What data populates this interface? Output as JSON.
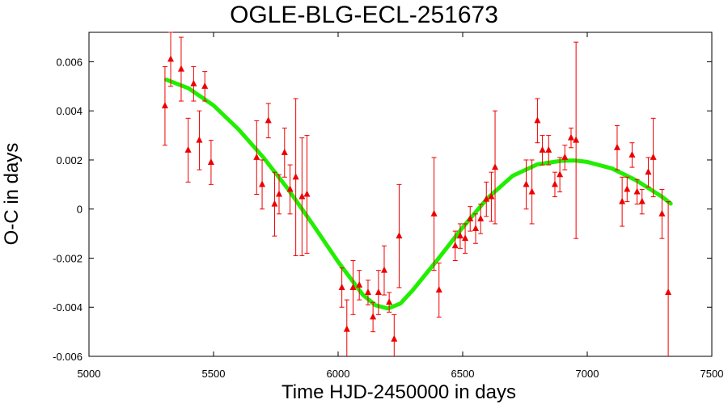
{
  "chart_data": {
    "type": "scatter",
    "title": "OGLE-BLG-ECL-251673",
    "xlabel": "Time HJD-2450000 in days",
    "ylabel": "O-C in days",
    "xlim": [
      5000,
      7500
    ],
    "ylim": [
      -0.006,
      0.0072
    ],
    "xticks": [
      5000,
      5500,
      6000,
      6500,
      7000,
      7500
    ],
    "yticks": [
      -0.006,
      -0.004,
      -0.002,
      0,
      0.002,
      0.004,
      0.006
    ],
    "ytick_labels": [
      "-0.006",
      "-0.004",
      "-0.002",
      "0",
      "0.002",
      "0.004",
      "0.006"
    ],
    "grid": false,
    "colors": {
      "points": "#ee0000",
      "fit": "#22ee00"
    },
    "series": [
      {
        "marker": "triangle",
        "points": [
          {
            "x": 5305,
            "y": 0.0042,
            "err": 0.0016
          },
          {
            "x": 5328,
            "y": 0.0061,
            "err": 0.0011
          },
          {
            "x": 5370,
            "y": 0.0057,
            "err": 0.0013
          },
          {
            "x": 5398,
            "y": 0.0024,
            "err": 0.0013
          },
          {
            "x": 5420,
            "y": 0.0051,
            "err": 0.0007
          },
          {
            "x": 5443,
            "y": 0.0028,
            "err": 0.0012
          },
          {
            "x": 5465,
            "y": 0.005,
            "err": 0.0006
          },
          {
            "x": 5490,
            "y": 0.0019,
            "err": 0.0009
          },
          {
            "x": 5673,
            "y": 0.0021,
            "err": 0.0015
          },
          {
            "x": 5695,
            "y": 0.001,
            "err": 0.001
          },
          {
            "x": 5720,
            "y": 0.0036,
            "err": 0.0007
          },
          {
            "x": 5745,
            "y": 0.0002,
            "err": 0.0013
          },
          {
            "x": 5763,
            "y": 0.0006,
            "err": 0.0008
          },
          {
            "x": 5785,
            "y": 0.0023,
            "err": 0.001
          },
          {
            "x": 5807,
            "y": 0.0008,
            "err": 0.001
          },
          {
            "x": 5830,
            "y": 0.0013,
            "err": 0.0032
          },
          {
            "x": 5855,
            "y": 0.0005,
            "err": 0.0024
          },
          {
            "x": 5875,
            "y": 0.0006,
            "err": 0.0024
          },
          {
            "x": 6015,
            "y": -0.0032,
            "err": 0.0008
          },
          {
            "x": 6035,
            "y": -0.0049,
            "err": 0.0012
          },
          {
            "x": 6060,
            "y": -0.0032,
            "err": 0.0011
          },
          {
            "x": 6085,
            "y": -0.0031,
            "err": 0.0006
          },
          {
            "x": 6120,
            "y": -0.0034,
            "err": 0.0005
          },
          {
            "x": 6140,
            "y": -0.0044,
            "err": 0.0006
          },
          {
            "x": 6162,
            "y": -0.0034,
            "err": 0.0009
          },
          {
            "x": 6185,
            "y": -0.0025,
            "err": 0.001
          },
          {
            "x": 6205,
            "y": -0.0038,
            "err": 0.0004
          },
          {
            "x": 6225,
            "y": -0.0053,
            "err": 0.001
          },
          {
            "x": 6245,
            "y": -0.0011,
            "err": 0.0021
          },
          {
            "x": 6385,
            "y": -0.0002,
            "err": 0.0023
          },
          {
            "x": 6405,
            "y": -0.0033,
            "err": 0.0011
          },
          {
            "x": 6470,
            "y": -0.0015,
            "err": 0.0006
          },
          {
            "x": 6490,
            "y": -0.0011,
            "err": 0.0005
          },
          {
            "x": 6510,
            "y": -0.0012,
            "err": 0.0006
          },
          {
            "x": 6530,
            "y": -0.0004,
            "err": 0.0005
          },
          {
            "x": 6552,
            "y": -0.0008,
            "err": 0.0006
          },
          {
            "x": 6572,
            "y": -0.0004,
            "err": 0.0006
          },
          {
            "x": 6595,
            "y": 0.0004,
            "err": 0.0007
          },
          {
            "x": 6615,
            "y": 0.0005,
            "err": 0.001
          },
          {
            "x": 6630,
            "y": 0.0017,
            "err": 0.0023
          },
          {
            "x": 6755,
            "y": 0.001,
            "err": 0.001
          },
          {
            "x": 6778,
            "y": 0.0007,
            "err": 0.0013
          },
          {
            "x": 6800,
            "y": 0.0036,
            "err": 0.0009
          },
          {
            "x": 6820,
            "y": 0.0024,
            "err": 0.0006
          },
          {
            "x": 6845,
            "y": 0.0024,
            "err": 0.0006
          },
          {
            "x": 6870,
            "y": 0.001,
            "err": 0.0005
          },
          {
            "x": 6890,
            "y": 0.0014,
            "err": 0.0007
          },
          {
            "x": 6910,
            "y": 0.0021,
            "err": 0.0005
          },
          {
            "x": 6935,
            "y": 0.0029,
            "err": 0.0004
          },
          {
            "x": 6955,
            "y": 0.0028,
            "err": 0.004
          },
          {
            "x": 7120,
            "y": 0.0025,
            "err": 0.0009
          },
          {
            "x": 7140,
            "y": 0.0003,
            "err": 0.001
          },
          {
            "x": 7160,
            "y": 0.0008,
            "err": 0.0005
          },
          {
            "x": 7180,
            "y": 0.0022,
            "err": 0.0005
          },
          {
            "x": 7200,
            "y": 0.0007,
            "err": 0.0005
          },
          {
            "x": 7220,
            "y": 0.0003,
            "err": 0.0005
          },
          {
            "x": 7245,
            "y": 0.0015,
            "err": 0.0006
          },
          {
            "x": 7265,
            "y": 0.0021,
            "err": 0.0016
          },
          {
            "x": 7300,
            "y": -0.0002,
            "err": 0.001
          },
          {
            "x": 7325,
            "y": -0.0034,
            "err": 0.0037
          }
        ]
      },
      {
        "marker": "line",
        "fit_curve": [
          [
            5310,
            0.00527
          ],
          [
            5400,
            0.00492
          ],
          [
            5500,
            0.00422
          ],
          [
            5600,
            0.00325
          ],
          [
            5700,
            0.0021
          ],
          [
            5800,
            0.0008
          ],
          [
            5900,
            -0.00065
          ],
          [
            6000,
            -0.00215
          ],
          [
            6100,
            -0.0035
          ],
          [
            6150,
            -0.00392
          ],
          [
            6200,
            -0.00405
          ],
          [
            6250,
            -0.00385
          ],
          [
            6300,
            -0.0033
          ],
          [
            6400,
            -0.00205
          ],
          [
            6500,
            -0.00075
          ],
          [
            6600,
            0.00045
          ],
          [
            6700,
            0.00135
          ],
          [
            6800,
            0.00182
          ],
          [
            6900,
            0.00197
          ],
          [
            6950,
            0.00198
          ],
          [
            7000,
            0.00192
          ],
          [
            7100,
            0.00165
          ],
          [
            7200,
            0.00115
          ],
          [
            7300,
            0.0005
          ],
          [
            7335,
            0.00022
          ]
        ]
      }
    ]
  }
}
